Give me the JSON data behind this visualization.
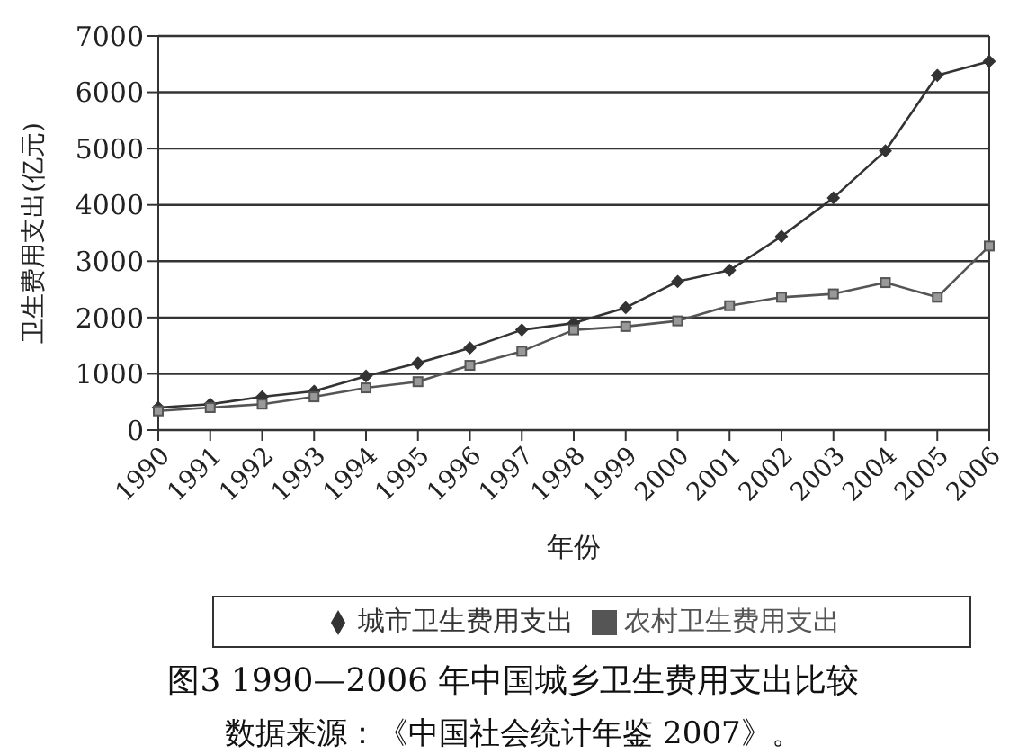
{
  "chart_data": {
    "type": "line",
    "title": "图3 1990—2006 年中国城乡卫生费用支出比较",
    "annotations": [
      "数据来源：《中国社会统计年鉴 2007》。"
    ],
    "xlabel": "年份",
    "ylabel": "卫生费用支出(亿元)",
    "categories": [
      "1990",
      "1991",
      "1992",
      "1993",
      "1994",
      "1995",
      "1996",
      "1997",
      "1998",
      "1999",
      "2000",
      "2001",
      "2002",
      "2003",
      "2004",
      "2005",
      "2006"
    ],
    "series": [
      {
        "name": "城市卫生费用支出",
        "color": "#333333",
        "marker": "diamond",
        "values": [
          400,
          460,
          590,
          690,
          960,
          1190,
          1460,
          1780,
          1900,
          2175,
          2640,
          2840,
          3440,
          4125,
          4960,
          6300,
          6550
        ]
      },
      {
        "name": "农村卫生费用支出",
        "color": "#555555",
        "marker": "square",
        "values": [
          340,
          400,
          460,
          590,
          750,
          860,
          1150,
          1400,
          1780,
          1840,
          1940,
          2210,
          2360,
          2420,
          2620,
          2360,
          3270
        ]
      }
    ],
    "ylim": [
      0,
      7000
    ],
    "yticks": [
      0,
      1000,
      2000,
      3000,
      4000,
      5000,
      6000,
      7000
    ],
    "grid": "y",
    "legend": "bottom",
    "line_style": "solid"
  }
}
